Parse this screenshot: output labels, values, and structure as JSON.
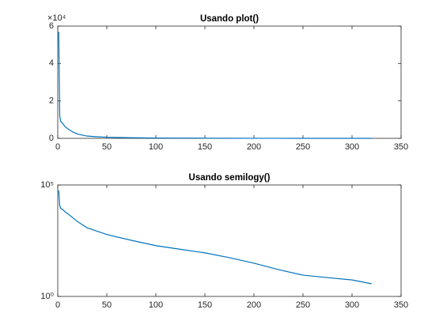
{
  "chart_data": [
    {
      "type": "line",
      "title": "Usando plot()",
      "color": "#0072bd",
      "y_multiplier": "×10⁴",
      "x": [
        1,
        2,
        3,
        5,
        7,
        10,
        15,
        20,
        30,
        40,
        50,
        75,
        100,
        125,
        150,
        175,
        200,
        225,
        250,
        275,
        300,
        320
      ],
      "values": [
        57000,
        12000,
        9000,
        8000,
        6500,
        5200,
        3500,
        2300,
        1200,
        850,
        600,
        330,
        190,
        130,
        90,
        55,
        31,
        16,
        9,
        7,
        5.5,
        3.7
      ],
      "xlim": [
        0,
        350
      ],
      "xticks": [
        0,
        50,
        100,
        150,
        200,
        250,
        300,
        350
      ],
      "ylim": [
        0,
        60000
      ],
      "yticks": [
        0,
        {
          "value": 20000,
          "label": "2"
        },
        {
          "value": 40000,
          "label": "4"
        },
        {
          "value": 60000,
          "label": "6"
        }
      ]
    },
    {
      "type": "line",
      "title": "Usando semilogy()",
      "color": "#0072bd",
      "log_y": true,
      "x": [
        1,
        2,
        3,
        5,
        7,
        10,
        15,
        20,
        30,
        40,
        50,
        75,
        100,
        125,
        150,
        175,
        200,
        225,
        250,
        275,
        300,
        320
      ],
      "values": [
        57000,
        12000,
        9000,
        8000,
        6500,
        5200,
        3500,
        2300,
        1200,
        850,
        600,
        330,
        190,
        130,
        90,
        55,
        31,
        16,
        9,
        7,
        5.5,
        3.7
      ],
      "xlim": [
        0,
        350
      ],
      "xticks": [
        0,
        50,
        100,
        150,
        200,
        250,
        300,
        350
      ],
      "ylim": [
        1,
        100000
      ],
      "yticks": [
        {
          "value": 1,
          "label": "10⁰"
        },
        {
          "value": 100000,
          "label": "10⁵"
        }
      ]
    }
  ]
}
